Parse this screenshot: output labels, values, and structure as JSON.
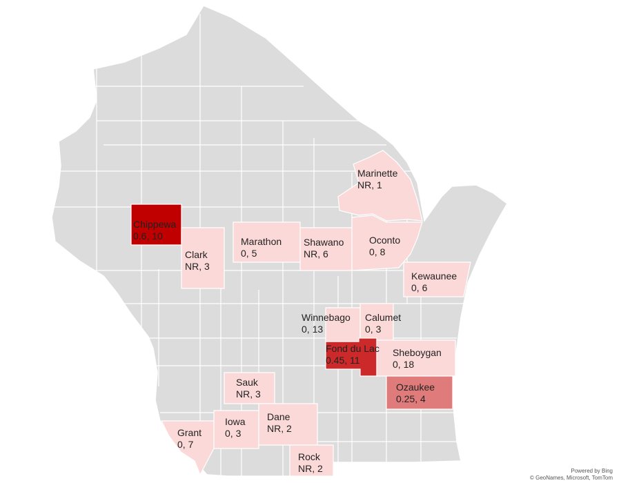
{
  "map": {
    "base_color": "#dcdcdc",
    "border_color": "#ffffff",
    "counties": [
      {
        "id": "chippewa",
        "name": "Chippewa",
        "value": "0.6, 10",
        "color": "#c00000"
      },
      {
        "id": "clark",
        "name": "Clark",
        "value": "NR, 3",
        "color": "#fcd9d9"
      },
      {
        "id": "marathon",
        "name": "Marathon",
        "value": "0, 5",
        "color": "#fcd9d9"
      },
      {
        "id": "shawano",
        "name": "Shawano",
        "value": "NR, 6",
        "color": "#fcd9d9"
      },
      {
        "id": "marinette",
        "name": "Marinette",
        "value": "NR, 1",
        "color": "#fcd9d9"
      },
      {
        "id": "oconto",
        "name": "Oconto",
        "value": "0, 8",
        "color": "#fcd9d9"
      },
      {
        "id": "kewaunee",
        "name": "Kewaunee",
        "value": "0, 6",
        "color": "#fcd9d9"
      },
      {
        "id": "winnebago",
        "name": "Winnebago",
        "value": "0, 13",
        "color": "#fcd9d9"
      },
      {
        "id": "calumet",
        "name": "Calumet",
        "value": "0, 3",
        "color": "#fcd9d9"
      },
      {
        "id": "fond-du-lac",
        "name": "Fond du Lac",
        "value": "0.45, 11",
        "color": "#cc2a2a"
      },
      {
        "id": "sheboygan",
        "name": "Sheboygan",
        "value": "0, 18",
        "color": "#fcd9d9"
      },
      {
        "id": "ozaukee",
        "name": "Ozaukee",
        "value": "0.25, 4",
        "color": "#e07b7b"
      },
      {
        "id": "sauk",
        "name": "Sauk",
        "value": "NR, 3",
        "color": "#fcd9d9"
      },
      {
        "id": "grant",
        "name": "Grant",
        "value": "0, 7",
        "color": "#fcd9d9"
      },
      {
        "id": "iowa",
        "name": "Iowa",
        "value": "0, 3",
        "color": "#fcd9d9"
      },
      {
        "id": "dane",
        "name": "Dane",
        "value": "NR, 2",
        "color": "#fcd9d9"
      },
      {
        "id": "rock",
        "name": "Rock",
        "value": "NR, 2",
        "color": "#fcd9d9"
      }
    ]
  },
  "credits": {
    "line1": "Powered by Bing",
    "line2": "© GeoNames, Microsoft, TomTom"
  }
}
